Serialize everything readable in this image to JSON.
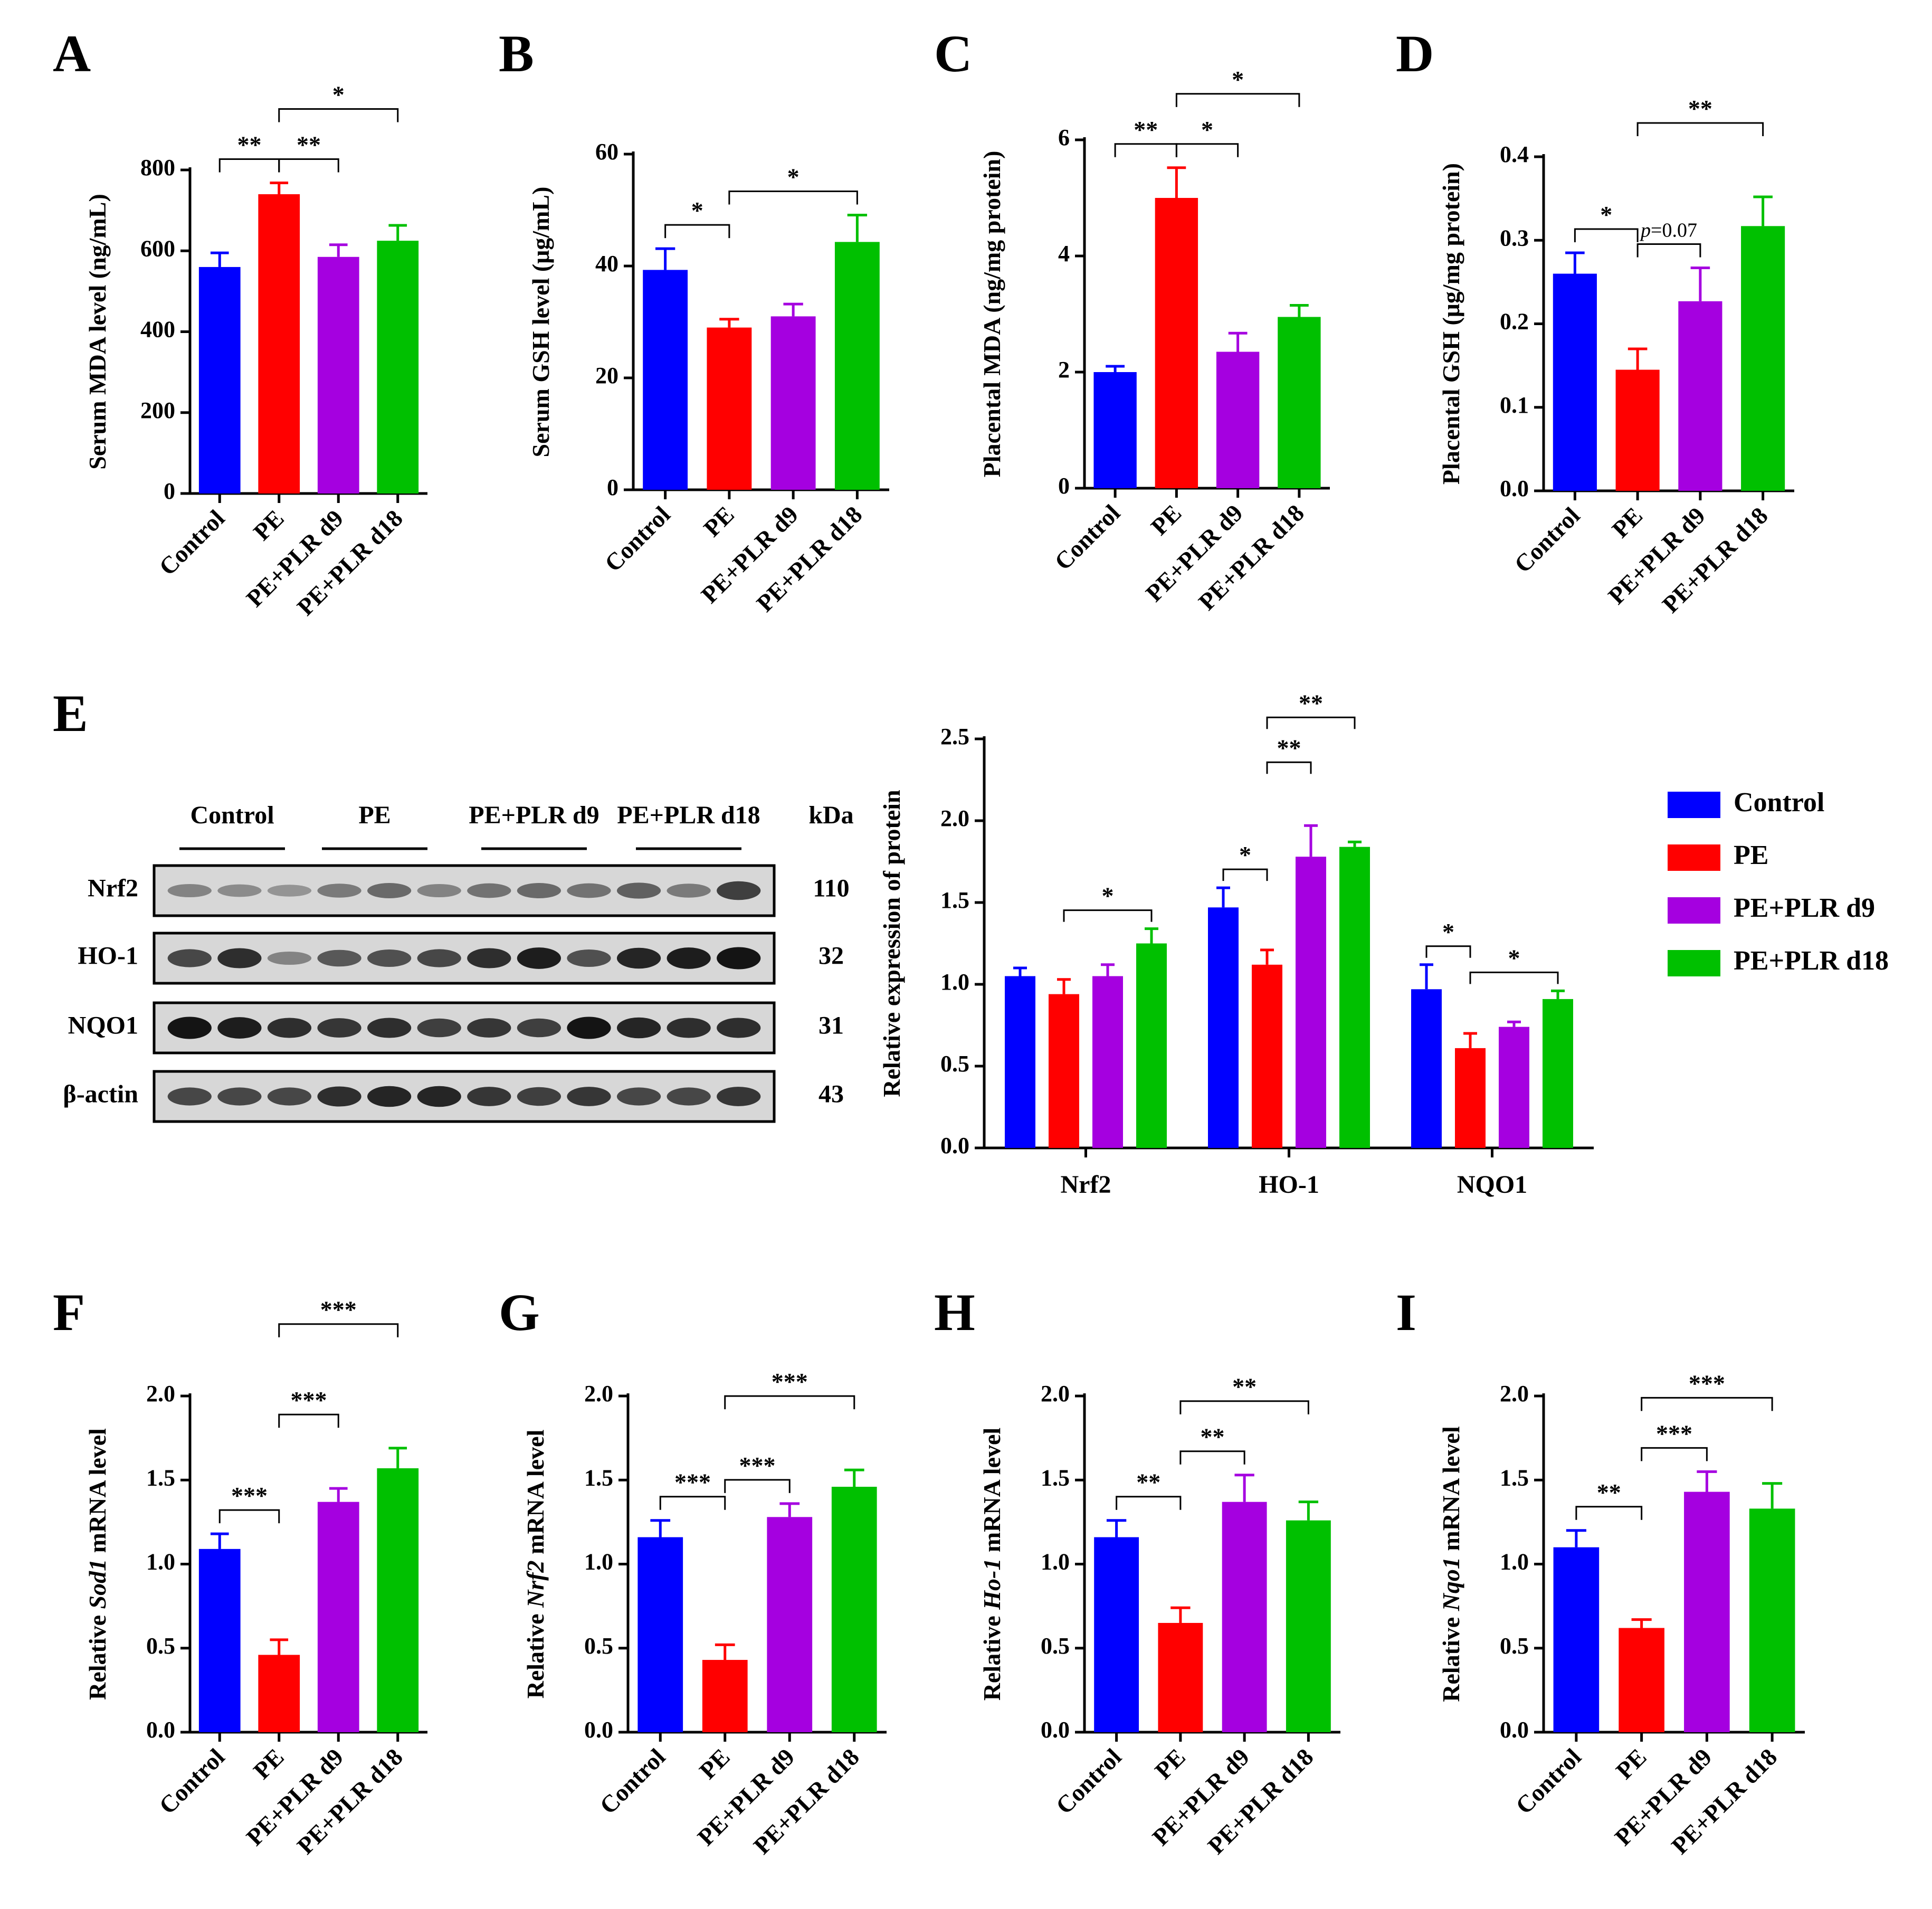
{
  "colors": {
    "Control": "#0000FF",
    "PE": "#FF0000",
    "PE+PLR d9": "#A500E0",
    "PE+PLR d18": "#00C000"
  },
  "groups": [
    "Control",
    "PE",
    "PE+PLR d9",
    "PE+PLR d18"
  ],
  "chart_data": [
    {
      "panel": "A",
      "type": "bar",
      "categories": [
        "Control",
        "PE",
        "PE+PLR d9",
        "PE+PLR d18"
      ],
      "values": [
        560,
        740,
        585,
        625
      ],
      "errors": [
        35,
        28,
        30,
        38
      ],
      "ylabel": "Serum MDA level (ng/mL)",
      "ylim": [
        0,
        800
      ],
      "yticks": [
        0,
        200,
        400,
        600,
        800
      ],
      "ytick_labels": [
        "0",
        "200",
        "400",
        "600",
        "800"
      ],
      "sig": [
        {
          "from": 0,
          "to": 1,
          "label": "**",
          "level": 1
        },
        {
          "from": 1,
          "to": 2,
          "label": "**",
          "level": 1
        },
        {
          "from": 1,
          "to": 3,
          "label": "*",
          "level": 2
        }
      ]
    },
    {
      "panel": "B",
      "type": "bar",
      "categories": [
        "Control",
        "PE",
        "PE+PLR d9",
        "PE+PLR d18"
      ],
      "values": [
        39.3,
        29,
        31,
        44.3
      ],
      "errors": [
        3.8,
        1.5,
        2.2,
        4.8
      ],
      "ylabel": "Serum GSH level (μg/mL)",
      "ylim": [
        0,
        60
      ],
      "yticks": [
        0,
        20,
        40,
        60
      ],
      "ytick_labels": [
        "0",
        "20",
        "40",
        "60"
      ],
      "sig": [
        {
          "from": 0,
          "to": 1,
          "label": "*",
          "level": 1
        },
        {
          "from": 1,
          "to": 3,
          "label": "*",
          "level": 1
        }
      ]
    },
    {
      "panel": "C",
      "type": "bar",
      "categories": [
        "Control",
        "PE",
        "PE+PLR d9",
        "PE+PLR d18"
      ],
      "values": [
        2.0,
        5.0,
        2.35,
        2.95
      ],
      "errors": [
        0.1,
        0.52,
        0.32,
        0.2
      ],
      "ylabel": "Placental MDA (ng/mg protein)",
      "ylim": [
        0,
        6
      ],
      "yticks": [
        0,
        2,
        4,
        6
      ],
      "ytick_labels": [
        "0",
        "2",
        "4",
        "6"
      ],
      "sig": [
        {
          "from": 0,
          "to": 1,
          "label": "**",
          "level": 1
        },
        {
          "from": 1,
          "to": 2,
          "label": "*",
          "level": 1
        },
        {
          "from": 1,
          "to": 3,
          "label": "*",
          "level": 2
        }
      ]
    },
    {
      "panel": "D",
      "type": "bar",
      "categories": [
        "Control",
        "PE",
        "PE+PLR d9",
        "PE+PLR d18"
      ],
      "values": [
        0.26,
        0.145,
        0.227,
        0.317
      ],
      "errors": [
        0.025,
        0.025,
        0.04,
        0.035
      ],
      "ylabel": "Placental GSH (μg/mg protein)",
      "ylim": [
        0,
        0.4
      ],
      "yticks": [
        0,
        0.1,
        0.2,
        0.3,
        0.4
      ],
      "ytick_labels": [
        "0.0",
        "0.1",
        "0.2",
        "0.3",
        "0.4"
      ],
      "sig": [
        {
          "from": 0,
          "to": 1,
          "label": "*",
          "level": 1
        },
        {
          "from": 1,
          "to": 2,
          "label": "p=0.07",
          "level": 1
        },
        {
          "from": 1,
          "to": 3,
          "label": "**",
          "level": 2
        }
      ]
    },
    {
      "panel": "E",
      "type": "bar",
      "categories": [
        "Nrf2",
        "HO-1",
        "NQO1"
      ],
      "series": [
        {
          "name": "Control",
          "values": [
            1.05,
            1.47,
            0.97
          ],
          "errors": [
            0.05,
            0.12,
            0.15
          ]
        },
        {
          "name": "PE",
          "values": [
            0.94,
            1.12,
            0.61
          ],
          "errors": [
            0.09,
            0.09,
            0.09
          ]
        },
        {
          "name": "PE+PLR d9",
          "values": [
            1.05,
            1.78,
            0.74
          ],
          "errors": [
            0.07,
            0.19,
            0.03
          ]
        },
        {
          "name": "PE+PLR d18",
          "values": [
            1.25,
            1.84,
            0.91
          ],
          "errors": [
            0.09,
            0.03,
            0.05
          ]
        }
      ],
      "ylabel": "Relative expression of protein",
      "ylim": [
        0,
        2.5
      ],
      "yticks": [
        0,
        0.5,
        1,
        1.5,
        2,
        2.5
      ],
      "ytick_labels": [
        "0.0",
        "0.5",
        "1.0",
        "1.5",
        "2.0",
        "2.5"
      ],
      "legend_position": "right",
      "sig": [
        {
          "cat": 0,
          "from": 1,
          "to": 3,
          "label": "*",
          "level": 1
        },
        {
          "cat": 1,
          "from": 0,
          "to": 1,
          "label": "*",
          "level": 1
        },
        {
          "cat": 1,
          "from": 1,
          "to": 2,
          "label": "**",
          "level": 2
        },
        {
          "cat": 1,
          "from": 1,
          "to": 3,
          "label": "**",
          "level": 3
        },
        {
          "cat": 2,
          "from": 0,
          "to": 1,
          "label": "*",
          "level": 1
        },
        {
          "cat": 2,
          "from": 1,
          "to": 3,
          "label": "*",
          "level": 1
        }
      ]
    },
    {
      "panel": "F",
      "type": "bar",
      "categories": [
        "Control",
        "PE",
        "PE+PLR d9",
        "PE+PLR d18"
      ],
      "values": [
        1.09,
        0.46,
        1.37,
        1.57
      ],
      "errors": [
        0.09,
        0.09,
        0.08,
        0.12
      ],
      "ylabel_prefix": "Relative ",
      "ylabel_gene": "Sod1",
      "ylabel_suffix": " mRNA level",
      "ylim": [
        0,
        2
      ],
      "yticks": [
        0,
        0.5,
        1,
        1.5,
        2
      ],
      "ytick_labels": [
        "0.0",
        "0.5",
        "1.0",
        "1.5",
        "2.0"
      ],
      "sig": [
        {
          "from": 0,
          "to": 1,
          "label": "***",
          "level": 1
        },
        {
          "from": 1,
          "to": 2,
          "label": "***",
          "level": 2
        },
        {
          "from": 1,
          "to": 3,
          "label": "***",
          "level": 3
        }
      ]
    },
    {
      "panel": "G",
      "type": "bar",
      "categories": [
        "Control",
        "PE",
        "PE+PLR d9",
        "PE+PLR d18"
      ],
      "values": [
        1.16,
        0.43,
        1.28,
        1.46
      ],
      "errors": [
        0.1,
        0.09,
        0.08,
        0.1
      ],
      "ylabel_prefix": "Relative ",
      "ylabel_gene": "Nrf2",
      "ylabel_suffix": " mRNA level",
      "ylim": [
        0,
        2
      ],
      "yticks": [
        0,
        0.5,
        1,
        1.5,
        2
      ],
      "ytick_labels": [
        "0.0",
        "0.5",
        "1.0",
        "1.5",
        "2.0"
      ],
      "sig": [
        {
          "from": 0,
          "to": 1,
          "label": "***",
          "level": 1
        },
        {
          "from": 1,
          "to": 2,
          "label": "***",
          "level": 1
        },
        {
          "from": 1,
          "to": 3,
          "label": "***",
          "level": 2
        }
      ]
    },
    {
      "panel": "H",
      "type": "bar",
      "categories": [
        "Control",
        "PE",
        "PE+PLR d9",
        "PE+PLR d18"
      ],
      "values": [
        1.16,
        0.65,
        1.37,
        1.26
      ],
      "errors": [
        0.1,
        0.09,
        0.16,
        0.11
      ],
      "ylabel_prefix": "Relative ",
      "ylabel_gene": "Ho-1",
      "ylabel_suffix": " mRNA level",
      "ylim": [
        0,
        2
      ],
      "yticks": [
        0,
        0.5,
        1,
        1.5,
        2
      ],
      "ytick_labels": [
        "0.0",
        "0.5",
        "1.0",
        "1.5",
        "2.0"
      ],
      "sig": [
        {
          "from": 0,
          "to": 1,
          "label": "**",
          "level": 1
        },
        {
          "from": 1,
          "to": 2,
          "label": "**",
          "level": 1
        },
        {
          "from": 1,
          "to": 3,
          "label": "**",
          "level": 2
        }
      ]
    },
    {
      "panel": "I",
      "type": "bar",
      "categories": [
        "Control",
        "PE",
        "PE+PLR d9",
        "PE+PLR d18"
      ],
      "values": [
        1.1,
        0.62,
        1.43,
        1.33
      ],
      "errors": [
        0.1,
        0.05,
        0.12,
        0.15
      ],
      "ylabel_prefix": "Relative ",
      "ylabel_gene": "Nqo1",
      "ylabel_suffix": " mRNA level",
      "ylim": [
        0,
        2
      ],
      "yticks": [
        0,
        0.5,
        1,
        1.5,
        2
      ],
      "ytick_labels": [
        "0.0",
        "0.5",
        "1.0",
        "1.5",
        "2.0"
      ],
      "sig": [
        {
          "from": 0,
          "to": 1,
          "label": "**",
          "level": 1
        },
        {
          "from": 1,
          "to": 2,
          "label": "***",
          "level": 1
        },
        {
          "from": 1,
          "to": 3,
          "label": "***",
          "level": 2
        }
      ]
    }
  ],
  "western_blot": {
    "group_labels": [
      "Control",
      "PE",
      "PE+PLR d9",
      "PE+PLR d18"
    ],
    "kda_header": "kDa",
    "rows": [
      {
        "protein": "Nrf2",
        "kda": "110",
        "intensity": [
          0.35,
          0.3,
          0.25,
          0.4,
          0.5,
          0.35,
          0.45,
          0.5,
          0.45,
          0.55,
          0.4,
          0.75
        ]
      },
      {
        "protein": "HO-1",
        "kda": "32",
        "intensity": [
          0.7,
          0.85,
          0.35,
          0.6,
          0.65,
          0.7,
          0.85,
          0.95,
          0.65,
          0.9,
          0.95,
          1.0
        ]
      },
      {
        "protein": "NQO1",
        "kda": "31",
        "intensity": [
          1.0,
          0.95,
          0.85,
          0.8,
          0.85,
          0.75,
          0.8,
          0.75,
          1.0,
          0.9,
          0.85,
          0.85
        ]
      },
      {
        "protein": "β-actin",
        "kda": "43",
        "intensity": [
          0.7,
          0.7,
          0.7,
          0.85,
          0.9,
          0.9,
          0.8,
          0.75,
          0.8,
          0.7,
          0.7,
          0.8
        ]
      }
    ]
  }
}
